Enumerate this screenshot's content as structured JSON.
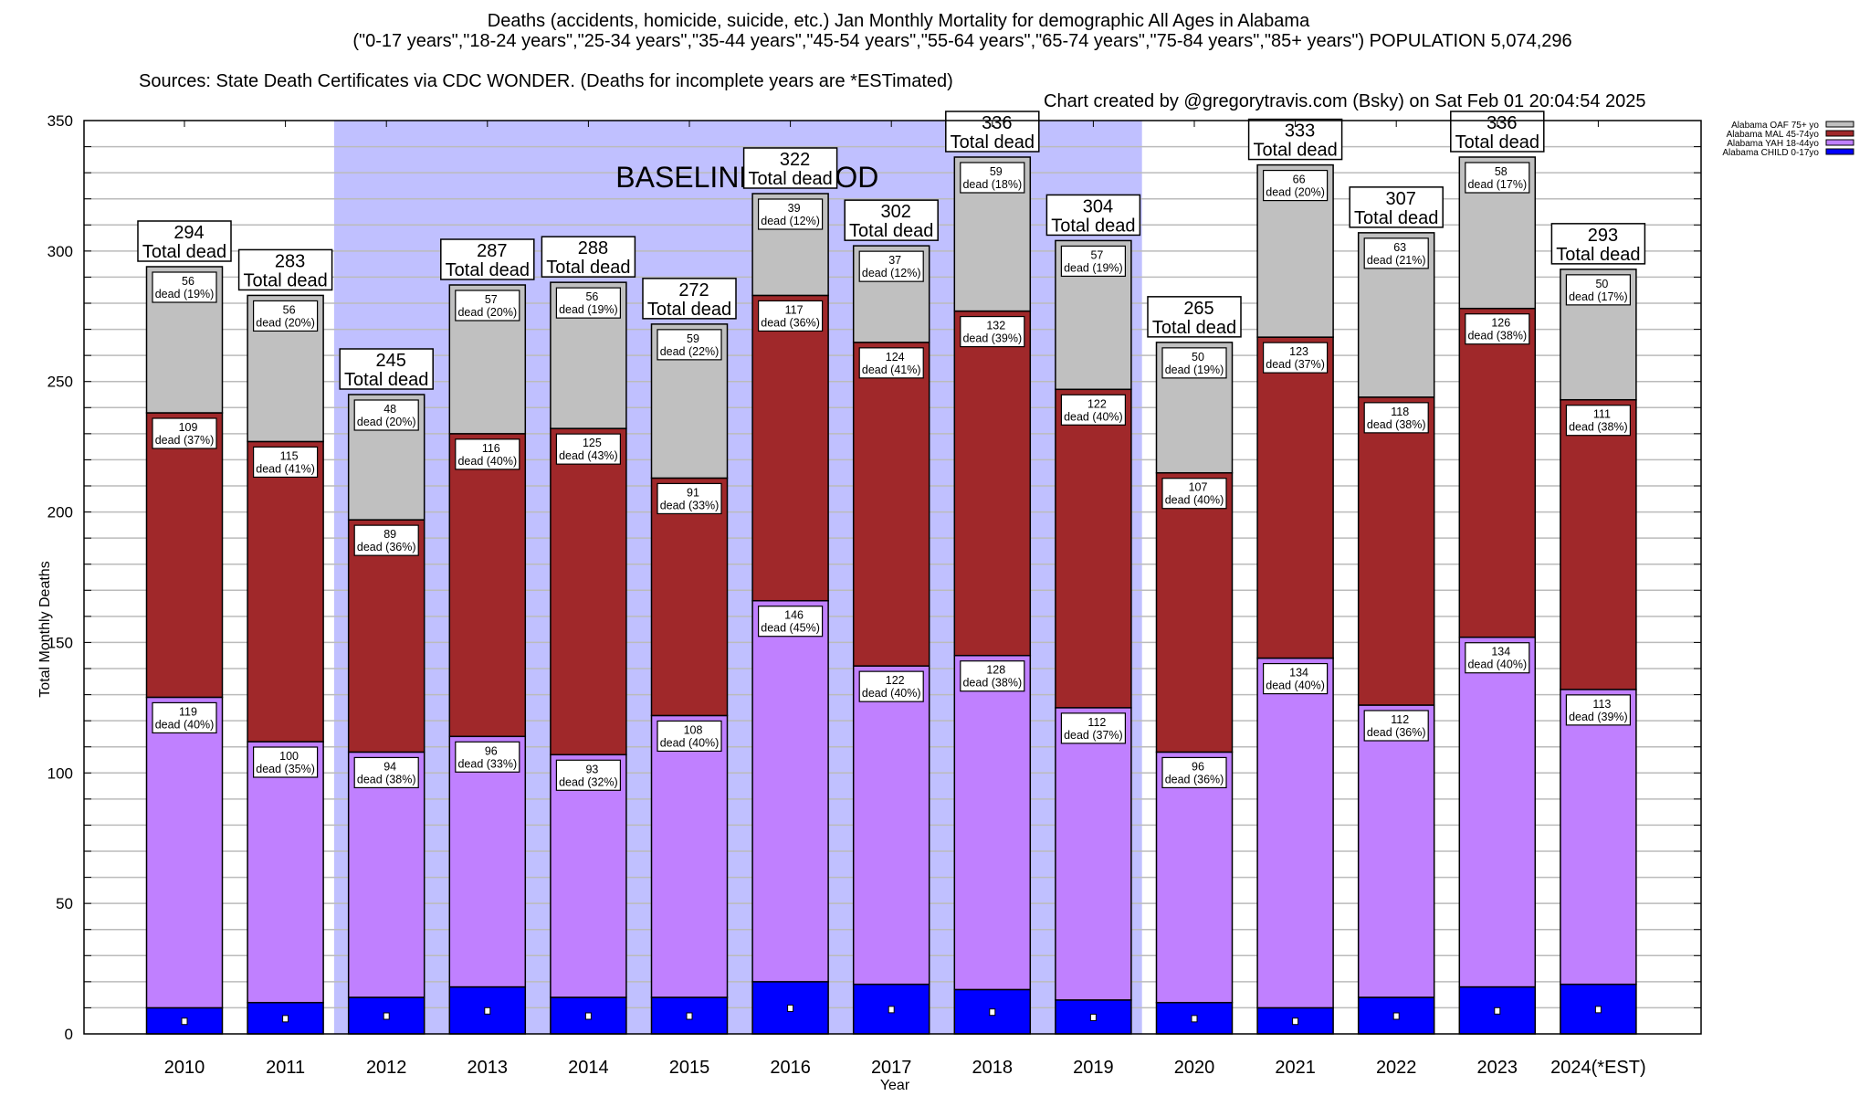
{
  "chart_data": {
    "type": "bar",
    "stacked": true,
    "title": "Deaths (accidents, homicide, suicide, etc.) Jan Monthly Mortality for demographic All Ages in Alabama",
    "subtitle": "(\"0-17 years\",\"18-24 years\",\"25-34 years\",\"35-44 years\",\"45-54 years\",\"55-64 years\",\"65-74 years\",\"75-84 years\",\"85+ years\") POPULATION 5,074,296",
    "source": "Sources: State Death Certificates via CDC WONDER. (Deaths for incomplete years are *ESTimated)",
    "credit": "Chart created by @gregorytravis.com (Bsky) on Sat Feb 01 20:04:54 2025",
    "xlabel": "Year",
    "ylabel": "Total Monthly Deaths",
    "ylim": [
      0,
      350
    ],
    "yticks": [
      0,
      50,
      100,
      150,
      200,
      250,
      300,
      350
    ],
    "grid": true,
    "legend_position": "top-right",
    "annotation": "BASELINE PERIOD",
    "baseline_period": [
      "2012",
      "2019"
    ],
    "total_label_suffix": "Total dead",
    "segment_label_word": "dead",
    "categories": [
      "2010",
      "2011",
      "2012",
      "2013",
      "2014",
      "2015",
      "2016",
      "2017",
      "2018",
      "2019",
      "2020",
      "2021",
      "2022",
      "2023",
      "2024(*EST)"
    ],
    "totals": [
      294,
      283,
      245,
      287,
      288,
      272,
      322,
      302,
      336,
      304,
      265,
      333,
      307,
      336,
      293
    ],
    "series": [
      {
        "name": "Alabama CHILD 0-17yo",
        "color": "#0000ff",
        "values": [
          10,
          12,
          14,
          18,
          14,
          14,
          20,
          19,
          17,
          13,
          12,
          10,
          14,
          18,
          19
        ],
        "labeled": false
      },
      {
        "name": "Alabama YAH 18-44yo",
        "color": "#c080ff",
        "values": [
          119,
          100,
          94,
          96,
          93,
          108,
          146,
          122,
          128,
          112,
          96,
          134,
          112,
          134,
          113
        ],
        "pct": [
          40,
          35,
          38,
          33,
          32,
          40,
          45,
          40,
          38,
          37,
          36,
          40,
          36,
          40,
          39
        ],
        "labeled": true
      },
      {
        "name": "Alabama MAL 45-74yo",
        "color": "#a0282a",
        "values": [
          109,
          115,
          89,
          116,
          125,
          91,
          117,
          124,
          132,
          122,
          107,
          123,
          118,
          126,
          111
        ],
        "pct": [
          37,
          41,
          36,
          40,
          43,
          33,
          36,
          41,
          39,
          40,
          40,
          37,
          38,
          38,
          38
        ],
        "labeled": true
      },
      {
        "name": "Alabama OAF 75+ yo",
        "color": "#c0c0c0",
        "values": [
          56,
          56,
          48,
          57,
          56,
          59,
          39,
          37,
          59,
          57,
          50,
          66,
          63,
          58,
          50
        ],
        "pct": [
          19,
          20,
          20,
          20,
          19,
          22,
          12,
          12,
          18,
          19,
          19,
          20,
          21,
          17,
          17
        ],
        "labeled": true
      }
    ],
    "legend_order": [
      "Alabama OAF 75+ yo",
      "Alabama MAL 45-74yo",
      "Alabama YAH 18-44yo",
      "Alabama CHILD 0-17yo"
    ],
    "colors": {
      "baseline_shade": "#c0c0ff",
      "grid": "#bbbbbb",
      "axis": "#000000"
    }
  }
}
